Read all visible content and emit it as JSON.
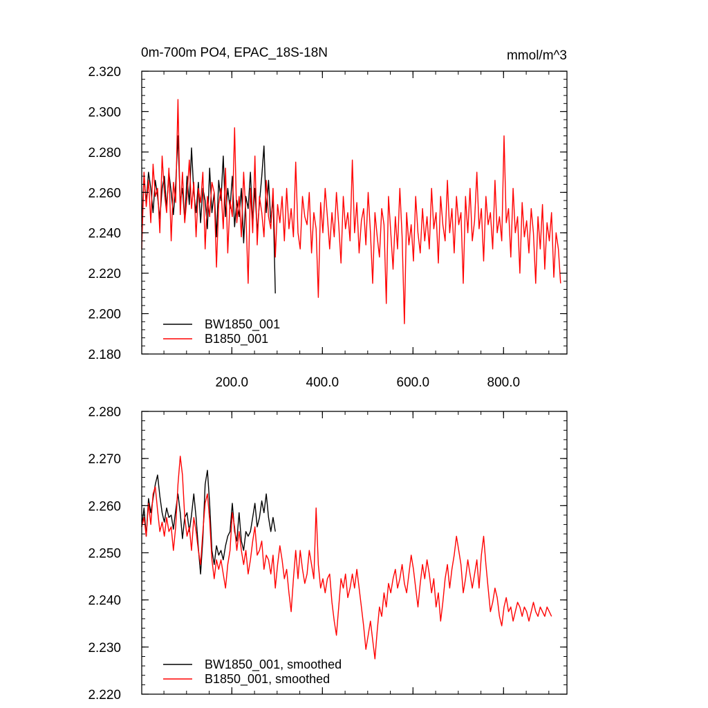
{
  "chart_data": [
    {
      "type": "line",
      "title": "0m-700m PO4, EPAC_18S-18N",
      "units": "mmol/m^3",
      "xlabel": "",
      "ylabel": "",
      "xlim": [
        1,
        940
      ],
      "ylim": [
        2.18,
        2.32
      ],
      "x_ticks": [
        200,
        400,
        600,
        800
      ],
      "x_tick_labels": [
        "200.0",
        "400.0",
        "600.0",
        "800.0"
      ],
      "y_ticks": [
        2.18,
        2.2,
        2.22,
        2.24,
        2.26,
        2.28,
        2.3,
        2.32
      ],
      "y_tick_labels": [
        "2.180",
        "2.200",
        "2.220",
        "2.240",
        "2.260",
        "2.280",
        "2.300",
        "2.320"
      ],
      "grid": false,
      "legend_position": "bottom-left",
      "series": [
        {
          "name": "BW1850_001",
          "color": "#000000",
          "x_start": 1,
          "x_step": 5,
          "values": [
            2.243,
            2.268,
            2.255,
            2.27,
            2.262,
            2.25,
            2.266,
            2.258,
            2.247,
            2.262,
            2.268,
            2.252,
            2.27,
            2.26,
            2.249,
            2.264,
            2.288,
            2.255,
            2.262,
            2.246,
            2.268,
            2.254,
            2.282,
            2.26,
            2.25,
            2.265,
            2.245,
            2.262,
            2.256,
            2.242,
            2.272,
            2.25,
            2.26,
            2.238,
            2.266,
            2.256,
            2.278,
            2.248,
            2.262,
            2.252,
            2.268,
            2.243,
            2.256,
            2.248,
            2.262,
            2.235,
            2.258,
            2.252,
            2.27,
            2.245,
            2.262,
            2.24,
            2.255,
            2.268,
            2.283,
            2.25,
            2.266,
            2.245,
            2.258,
            2.21
          ]
        },
        {
          "name": "B1850_001",
          "color": "#ff0000",
          "x_start": 1,
          "x_step": 5,
          "values": [
            2.232,
            2.27,
            2.253,
            2.266,
            2.245,
            2.274,
            2.258,
            2.262,
            2.24,
            2.278,
            2.26,
            2.25,
            2.272,
            2.236,
            2.265,
            2.255,
            2.306,
            2.249,
            2.27,
            2.245,
            2.258,
            2.276,
            2.252,
            2.265,
            2.238,
            2.262,
            2.255,
            2.27,
            2.232,
            2.258,
            2.248,
            2.265,
            2.26,
            2.223,
            2.254,
            2.262,
            2.242,
            2.272,
            2.23,
            2.256,
            2.248,
            2.292,
            2.245,
            2.258,
            2.238,
            2.27,
            2.25,
            2.215,
            2.262,
            2.24,
            2.278,
            2.234,
            2.258,
            2.25,
            2.238,
            2.266,
            2.248,
            2.242,
            2.262,
            2.228,
            2.254,
            2.245,
            2.258,
            2.236,
            2.262,
            2.242,
            2.252,
            2.238,
            2.275,
            2.24,
            2.232,
            2.258,
            2.248,
            2.244,
            2.26,
            2.23,
            2.25,
            2.242,
            2.208,
            2.255,
            2.24,
            2.262,
            2.248,
            2.232,
            2.25,
            2.238,
            2.26,
            2.244,
            2.225,
            2.258,
            2.242,
            2.25,
            2.236,
            2.276,
            2.24,
            2.255,
            2.23,
            2.246,
            2.252,
            2.234,
            2.26,
            2.24,
            2.215,
            2.25,
            2.238,
            2.228,
            2.252,
            2.244,
            2.205,
            2.258,
            2.24,
            2.222,
            2.248,
            2.232,
            2.262,
            2.238,
            2.195,
            2.25,
            2.234,
            2.244,
            2.226,
            2.258,
            2.24,
            2.23,
            2.252,
            2.236,
            2.248,
            2.232,
            2.262,
            2.242,
            2.25,
            2.225,
            2.258,
            2.244,
            2.236,
            2.266,
            2.24,
            2.252,
            2.23,
            2.258,
            2.244,
            2.25,
            2.215,
            2.258,
            2.24,
            2.262,
            2.236,
            2.246,
            2.27,
            2.242,
            2.252,
            2.226,
            2.258,
            2.244,
            2.25,
            2.232,
            2.266,
            2.24,
            2.248,
            2.236,
            2.288,
            2.245,
            2.252,
            2.228,
            2.262,
            2.24,
            2.248,
            2.22,
            2.255,
            2.238,
            2.246,
            2.23,
            2.252,
            2.24,
            2.215,
            2.248,
            2.232,
            2.254,
            2.222,
            2.245,
            2.236,
            2.25,
            2.218,
            2.24,
            2.232,
            2.215
          ]
        }
      ]
    },
    {
      "type": "line",
      "title": "",
      "xlabel": "",
      "ylabel": "",
      "xlim": [
        1,
        940
      ],
      "ylim": [
        2.22,
        2.28
      ],
      "x_ticks": [
        200,
        400,
        600,
        800
      ],
      "y_ticks": [
        2.22,
        2.23,
        2.24,
        2.25,
        2.26,
        2.27,
        2.28
      ],
      "y_tick_labels": [
        "2.220",
        "2.230",
        "2.240",
        "2.250",
        "2.260",
        "2.270",
        "2.280"
      ],
      "grid": false,
      "legend_position": "bottom-left",
      "series": [
        {
          "name": "BW1850_001, smoothed",
          "color": "#000000",
          "x_start": 1,
          "x_step": 5,
          "values": [
            2.2555,
            2.2595,
            2.2535,
            2.2615,
            2.2585,
            2.2615,
            2.2645,
            2.2665,
            2.262,
            2.2585,
            2.2565,
            2.2595,
            2.2575,
            2.258,
            2.255,
            2.259,
            2.2625,
            2.2585,
            2.253,
            2.2575,
            2.2585,
            2.2545,
            2.258,
            2.2625,
            2.2575,
            2.251,
            2.2455,
            2.253,
            2.2645,
            2.2675,
            2.2605,
            2.2505,
            2.2475,
            2.2515,
            2.2495,
            2.2505,
            2.2485,
            2.2515,
            2.2535,
            2.2545,
            2.2605,
            2.2545,
            2.2525,
            2.2585,
            2.2525,
            2.2505,
            2.2545,
            2.2535,
            2.2545,
            2.2575,
            2.2605,
            2.2555,
            2.2575,
            2.261,
            2.2585,
            2.2625,
            2.2575,
            2.2545,
            2.2575,
            2.2545
          ]
        },
        {
          "name": "B1850_001, smoothed",
          "color": "#ff0000",
          "x_start": 1,
          "x_step": 5,
          "values": [
            2.2555,
            2.2575,
            2.2535,
            2.2605,
            2.256,
            2.2625,
            2.264,
            2.259,
            2.2545,
            2.2565,
            2.2535,
            2.2575,
            2.2545,
            2.2555,
            2.2505,
            2.2555,
            2.2645,
            2.2705,
            2.2665,
            2.2575,
            2.2535,
            2.2555,
            2.2505,
            2.2575,
            2.2545,
            2.2505,
            2.2475,
            2.2545,
            2.2605,
            2.2625,
            2.257,
            2.2485,
            2.2445,
            2.2485,
            2.2465,
            2.2485,
            2.2455,
            2.2425,
            2.2475,
            2.2505,
            2.2585,
            2.2555,
            2.2505,
            2.2545,
            2.2505,
            2.2475,
            2.2505,
            2.2455,
            2.2485,
            2.2525,
            2.2555,
            2.2495,
            2.2505,
            2.2525,
            2.2465,
            2.2495,
            2.2485,
            2.2455,
            2.2495,
            2.2425,
            2.2475,
            2.2515,
            2.2485,
            2.2445,
            2.2465,
            2.2415,
            2.2375,
            2.2445,
            2.2505,
            2.2445,
            2.2505,
            2.2465,
            2.2435,
            2.2455,
            2.2505,
            2.2475,
            2.2445,
            2.2595,
            2.2475,
            2.2425,
            2.2445,
            2.2415,
            2.2445,
            2.2455,
            2.2395,
            2.2355,
            2.2325,
            2.2385,
            2.2445,
            2.2425,
            2.2455,
            2.2405,
            2.2425,
            2.2455,
            2.2425,
            2.2465,
            2.2425,
            2.2385,
            2.2345,
            2.2295,
            2.2325,
            2.2355,
            2.2315,
            2.2275,
            2.2335,
            2.2385,
            2.2365,
            2.2415,
            2.2385,
            2.2435,
            2.2415,
            2.2445,
            2.2465,
            2.2425,
            2.2445,
            2.2475,
            2.2435,
            2.2415,
            2.2455,
            2.2495,
            2.2465,
            2.2425,
            2.2385,
            2.2435,
            2.2475,
            2.2445,
            2.2485,
            2.2455,
            2.2415,
            2.2445,
            2.2385,
            2.2415,
            2.2355,
            2.2395,
            2.2445,
            2.2475,
            2.2425,
            2.2465,
            2.2495,
            2.2535,
            2.2505,
            2.2475,
            2.2415,
            2.2445,
            2.2485,
            2.2455,
            2.2425,
            2.2455,
            2.2485,
            2.2425,
            2.2495,
            2.2535,
            2.2475,
            2.2425,
            2.2375,
            2.2395,
            2.2425,
            2.2405,
            2.2365,
            2.2345,
            2.2385,
            2.2405,
            2.2375,
            2.2385,
            2.2355,
            2.2375,
            2.2395,
            2.2385,
            2.2365,
            2.2385,
            2.2375,
            2.2355,
            2.2375,
            2.2395,
            2.2375,
            2.2365,
            2.2385,
            2.2375,
            2.2365,
            2.2385,
            2.2375,
            2.2365
          ]
        }
      ]
    }
  ]
}
